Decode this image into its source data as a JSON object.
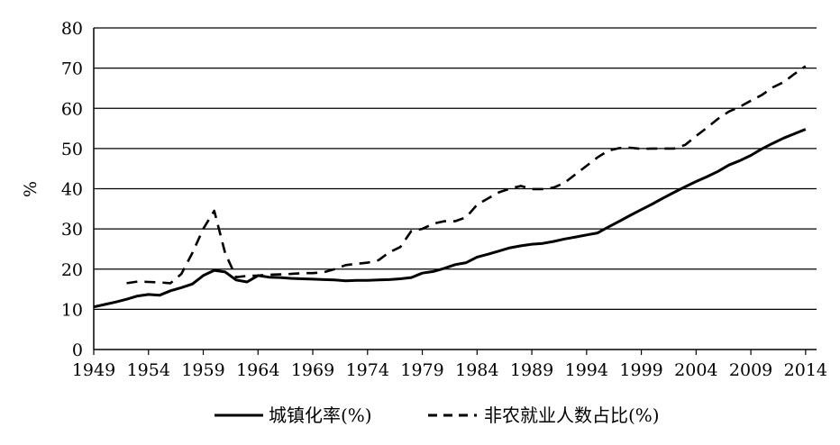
{
  "chart_data": {
    "type": "line",
    "title": "",
    "xlabel": "",
    "ylabel": "%",
    "xlim": [
      1949,
      2015
    ],
    "ylim": [
      0,
      80
    ],
    "x_ticks": [
      1949,
      1954,
      1959,
      1964,
      1969,
      1974,
      1979,
      1984,
      1989,
      1994,
      1999,
      2004,
      2009,
      2014
    ],
    "y_ticks": [
      0,
      10,
      20,
      30,
      40,
      50,
      60,
      70,
      80
    ],
    "grid": "horizontal",
    "legend_position": "bottom",
    "series": [
      {
        "name": "城镇化率(%)",
        "style": "solid",
        "points": [
          [
            1949,
            10.6
          ],
          [
            1950,
            11.2
          ],
          [
            1951,
            11.8
          ],
          [
            1952,
            12.5
          ],
          [
            1953,
            13.3
          ],
          [
            1954,
            13.7
          ],
          [
            1955,
            13.5
          ],
          [
            1956,
            14.6
          ],
          [
            1957,
            15.4
          ],
          [
            1958,
            16.3
          ],
          [
            1959,
            18.4
          ],
          [
            1960,
            19.7
          ],
          [
            1961,
            19.3
          ],
          [
            1962,
            17.3
          ],
          [
            1963,
            16.8
          ],
          [
            1964,
            18.4
          ],
          [
            1965,
            18.0
          ],
          [
            1966,
            17.9
          ],
          [
            1967,
            17.7
          ],
          [
            1968,
            17.6
          ],
          [
            1969,
            17.5
          ],
          [
            1970,
            17.4
          ],
          [
            1971,
            17.3
          ],
          [
            1972,
            17.1
          ],
          [
            1973,
            17.2
          ],
          [
            1974,
            17.2
          ],
          [
            1975,
            17.3
          ],
          [
            1976,
            17.4
          ],
          [
            1977,
            17.6
          ],
          [
            1978,
            17.9
          ],
          [
            1979,
            19.0
          ],
          [
            1980,
            19.4
          ],
          [
            1981,
            20.2
          ],
          [
            1982,
            21.1
          ],
          [
            1983,
            21.6
          ],
          [
            1984,
            23.0
          ],
          [
            1985,
            23.7
          ],
          [
            1986,
            24.5
          ],
          [
            1987,
            25.3
          ],
          [
            1988,
            25.8
          ],
          [
            1989,
            26.2
          ],
          [
            1990,
            26.4
          ],
          [
            1991,
            26.9
          ],
          [
            1992,
            27.5
          ],
          [
            1993,
            28.0
          ],
          [
            1994,
            28.5
          ],
          [
            1995,
            29.0
          ],
          [
            1996,
            30.5
          ],
          [
            1997,
            31.9
          ],
          [
            1998,
            33.4
          ],
          [
            1999,
            34.8
          ],
          [
            2000,
            36.2
          ],
          [
            2001,
            37.7
          ],
          [
            2002,
            39.1
          ],
          [
            2003,
            40.5
          ],
          [
            2004,
            41.8
          ],
          [
            2005,
            43.0
          ],
          [
            2006,
            44.3
          ],
          [
            2007,
            45.9
          ],
          [
            2008,
            47.0
          ],
          [
            2009,
            48.3
          ],
          [
            2010,
            49.9
          ],
          [
            2011,
            51.3
          ],
          [
            2012,
            52.6
          ],
          [
            2013,
            53.7
          ],
          [
            2014,
            54.8
          ]
        ]
      },
      {
        "name": "非农就业人数占比(%)",
        "style": "dashed",
        "points": [
          [
            1952,
            16.5
          ],
          [
            1953,
            16.9
          ],
          [
            1954,
            16.8
          ],
          [
            1955,
            16.7
          ],
          [
            1956,
            16.5
          ],
          [
            1957,
            18.8
          ],
          [
            1958,
            24.0
          ],
          [
            1959,
            30.0
          ],
          [
            1960,
            34.5
          ],
          [
            1961,
            24.0
          ],
          [
            1962,
            18.0
          ],
          [
            1963,
            18.3
          ],
          [
            1964,
            18.4
          ],
          [
            1965,
            18.6
          ],
          [
            1966,
            18.7
          ],
          [
            1967,
            18.8
          ],
          [
            1968,
            19.0
          ],
          [
            1969,
            19.0
          ],
          [
            1970,
            19.2
          ],
          [
            1971,
            20.0
          ],
          [
            1972,
            21.0
          ],
          [
            1973,
            21.3
          ],
          [
            1974,
            21.6
          ],
          [
            1975,
            22.2
          ],
          [
            1976,
            24.2
          ],
          [
            1977,
            25.5
          ],
          [
            1978,
            29.5
          ],
          [
            1979,
            30.0
          ],
          [
            1980,
            31.3
          ],
          [
            1981,
            31.9
          ],
          [
            1982,
            31.9
          ],
          [
            1983,
            32.9
          ],
          [
            1984,
            36.0
          ],
          [
            1985,
            37.6
          ],
          [
            1986,
            39.1
          ],
          [
            1987,
            40.0
          ],
          [
            1988,
            40.7
          ],
          [
            1989,
            39.9
          ],
          [
            1990,
            39.9
          ],
          [
            1991,
            40.3
          ],
          [
            1992,
            41.5
          ],
          [
            1993,
            43.6
          ],
          [
            1994,
            45.7
          ],
          [
            1995,
            47.8
          ],
          [
            1996,
            49.5
          ],
          [
            1997,
            50.1
          ],
          [
            1998,
            50.2
          ],
          [
            1999,
            49.9
          ],
          [
            2000,
            50.0
          ],
          [
            2001,
            50.0
          ],
          [
            2002,
            50.0
          ],
          [
            2003,
            50.9
          ],
          [
            2004,
            53.1
          ],
          [
            2005,
            55.2
          ],
          [
            2006,
            57.4
          ],
          [
            2007,
            59.2
          ],
          [
            2008,
            60.4
          ],
          [
            2009,
            61.9
          ],
          [
            2010,
            63.3
          ],
          [
            2011,
            65.2
          ],
          [
            2012,
            66.5
          ],
          [
            2013,
            68.6
          ],
          [
            2014,
            70.5
          ]
        ]
      }
    ]
  }
}
